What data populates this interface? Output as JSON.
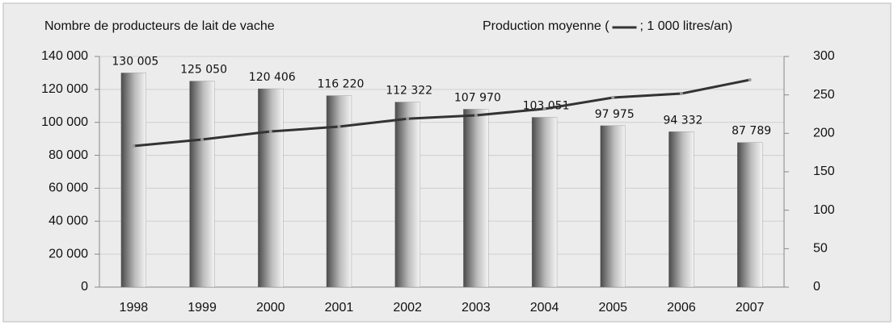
{
  "chart_data": {
    "type": "bar-line",
    "y_label": "Nombre de producteurs de lait de vache",
    "y2_label_before": "Production moyenne (",
    "y2_label_after": "; 1 000 litres/an)",
    "categories": [
      "1998",
      "1999",
      "2000",
      "2001",
      "2002",
      "2003",
      "2004",
      "2005",
      "2006",
      "2007"
    ],
    "series": [
      {
        "type": "bar",
        "color": "#777777",
        "values": [
          130005,
          125050,
          120406,
          116220,
          112322,
          107970,
          103051,
          97975,
          94332,
          87789
        ],
        "value_labels": [
          "130 005",
          "125 050",
          "120 406",
          "116 220",
          "112 322",
          "107 970",
          "103 051",
          "97 975",
          "94 332",
          "87 789"
        ]
      },
      {
        "type": "line",
        "axis": "y2",
        "color": "#333333",
        "values": [
          183.6,
          192,
          202.4,
          208.7,
          219,
          223.4,
          231.8,
          246.5,
          251.7,
          269.6
        ]
      }
    ],
    "ylim": [
      0,
      140000
    ],
    "yticks": [
      0,
      {
        "value": 20000,
        "label": "20 000"
      },
      {
        "value": 40000,
        "label": "40 000"
      },
      {
        "value": 60000,
        "label": "60 000"
      },
      {
        "value": 80000,
        "label": "80 000"
      },
      {
        "value": 100000,
        "label": "100 000"
      },
      {
        "value": 120000,
        "label": "120 000"
      },
      {
        "value": 140000,
        "label": "140 000"
      }
    ],
    "y2lim": [
      0,
      300
    ],
    "y2ticks": [
      0,
      50,
      100,
      150,
      200,
      250,
      300
    ],
    "grid": true
  }
}
